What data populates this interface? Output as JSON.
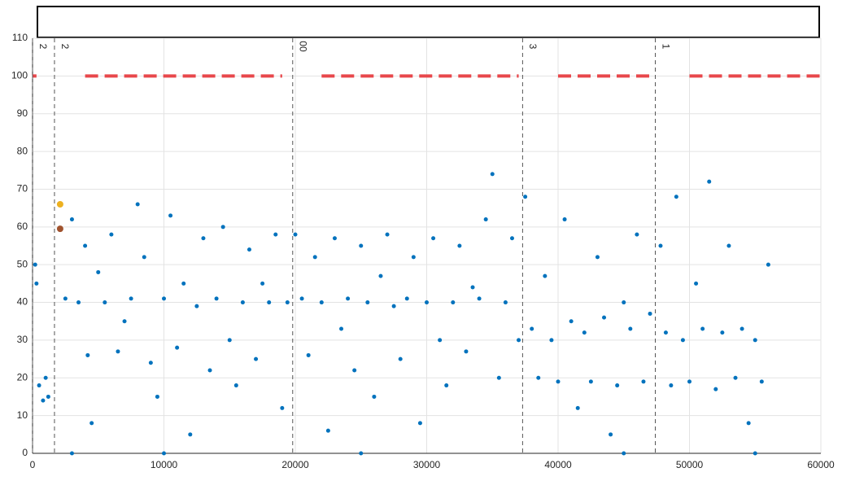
{
  "chart_data": {
    "type": "scatter",
    "xlim": [
      0,
      60000
    ],
    "ylim": [
      0,
      110
    ],
    "xticks": [
      0,
      10000,
      20000,
      30000,
      40000,
      50000,
      60000
    ],
    "yticks": [
      0,
      10,
      20,
      30,
      40,
      50,
      60,
      70,
      80,
      90,
      100,
      110
    ],
    "grid": true,
    "series": [
      {
        "color": "#0072bd",
        "x": [
          200,
          300,
          500,
          800,
          1000,
          1200,
          2500,
          3000,
          3500,
          4000,
          4200,
          4500,
          5000,
          5500,
          6000,
          6500,
          7000,
          7500,
          8000,
          8500,
          9000,
          9500,
          10000,
          10500,
          11000,
          11500,
          12000,
          12500,
          13000,
          13500,
          14000,
          14500,
          15000,
          15500,
          16000,
          16500,
          17000,
          17500,
          18000,
          18500,
          19000,
          19400,
          20000,
          20500,
          21000,
          21500,
          22000,
          22500,
          23000,
          23500,
          24000,
          24500,
          25000,
          25500,
          26000,
          26500,
          27000,
          27500,
          28000,
          28500,
          29000,
          29500,
          30000,
          30500,
          31000,
          31500,
          32000,
          32500,
          33000,
          33500,
          34000,
          34500,
          35000,
          35500,
          36000,
          36500,
          37000,
          37500,
          38000,
          38500,
          39000,
          39500,
          40000,
          40500,
          41000,
          41500,
          42000,
          42500,
          43000,
          43500,
          44000,
          44500,
          45000,
          45500,
          46000,
          46500,
          47000,
          47800,
          48200,
          48600,
          49000,
          49500,
          50000,
          50500,
          51000,
          51500,
          52000,
          52500,
          53000,
          53500,
          54000,
          54500,
          55000,
          55500,
          56000,
          3000,
          10000,
          25000,
          45000,
          55000
        ],
        "values": [
          50,
          45,
          18,
          14,
          20,
          15,
          41,
          62,
          40,
          55,
          26,
          8,
          48,
          40,
          58,
          27,
          35,
          41,
          66,
          52,
          24,
          15,
          41,
          63,
          28,
          45,
          5,
          39,
          57,
          22,
          41,
          60,
          30,
          18,
          40,
          54,
          25,
          45,
          40,
          58,
          12,
          40,
          58,
          41,
          26,
          52,
          40,
          6,
          57,
          33,
          41,
          22,
          55,
          40,
          15,
          47,
          58,
          39,
          25,
          41,
          52,
          8,
          40,
          57,
          30,
          18,
          40,
          55,
          27,
          44,
          41,
          62,
          74,
          20,
          40,
          57,
          30,
          68,
          33,
          20,
          47,
          30,
          19,
          62,
          35,
          12,
          32,
          19,
          52,
          36,
          5,
          18,
          40,
          33,
          58,
          19,
          37,
          55,
          32,
          18,
          68,
          30,
          19,
          45,
          33,
          72,
          17,
          32,
          55,
          20,
          33,
          8,
          30,
          19,
          50,
          0,
          0,
          0,
          0,
          0
        ]
      },
      {
        "color": "#edb120",
        "x": [
          2100
        ],
        "values": [
          66
        ]
      },
      {
        "color": "#a0522d",
        "x": [
          2100
        ],
        "values": [
          59.5
        ]
      }
    ],
    "vlines": {
      "color": "#555555",
      "x": [
        0,
        1670,
        19800,
        37300,
        47400
      ],
      "labels": [
        "2",
        "2",
        "00",
        "3",
        "1"
      ]
    },
    "reference": {
      "color": "#e8474b",
      "y": 100,
      "segments": [
        [
          0,
          300
        ],
        [
          4000,
          19000
        ],
        [
          22000,
          37000
        ],
        [
          40000,
          47000
        ],
        [
          50000,
          60000
        ]
      ]
    }
  }
}
